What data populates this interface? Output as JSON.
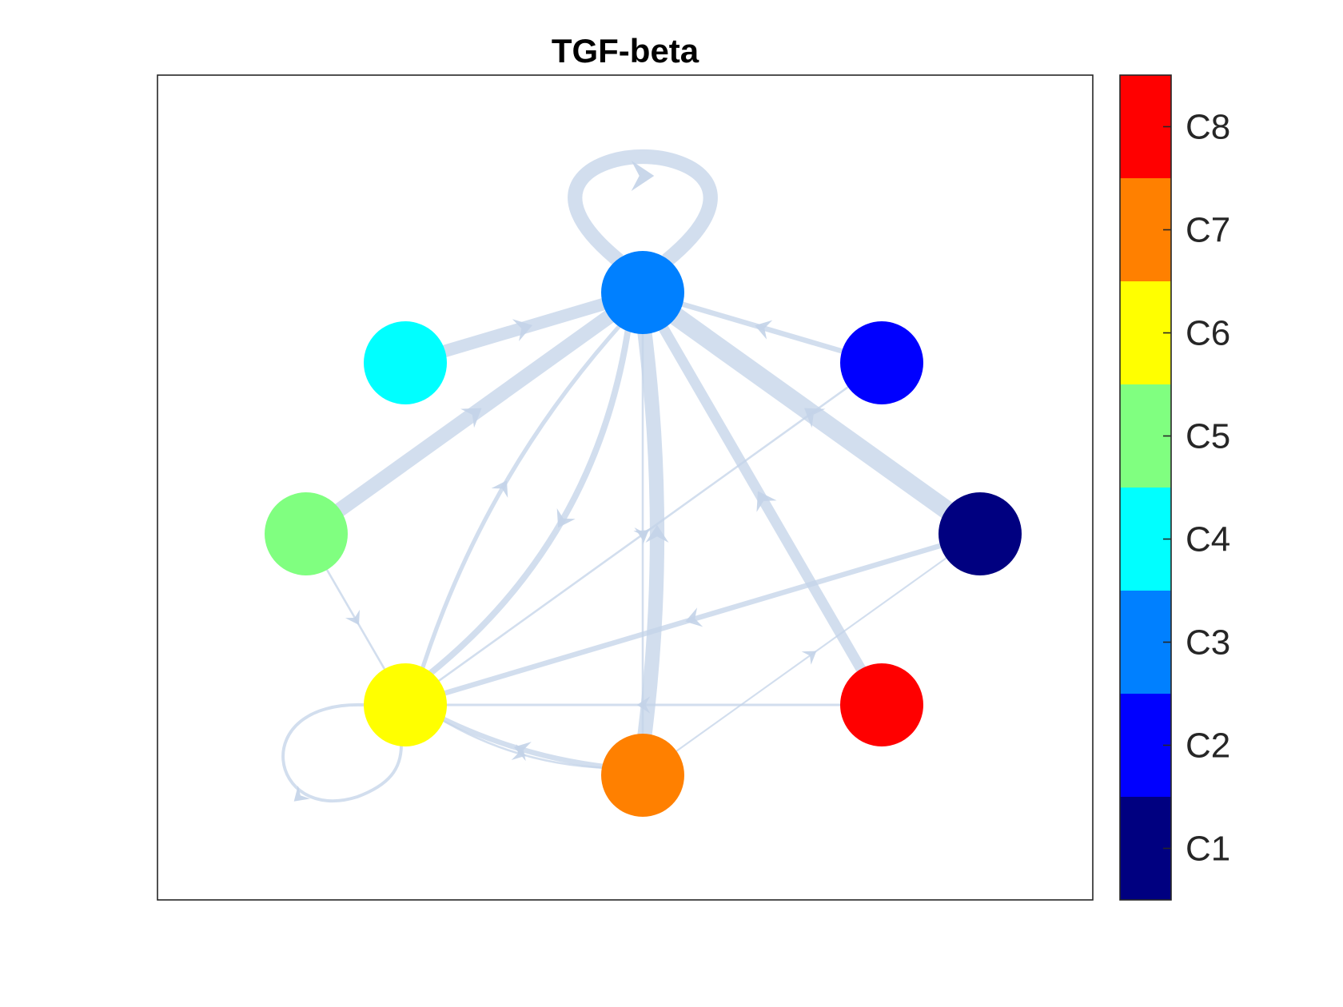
{
  "chart_data": {
    "type": "network",
    "title": "TGF-beta",
    "edge_color": "#c3d3e8",
    "nodes": [
      {
        "id": "C1",
        "color": "#000080"
      },
      {
        "id": "C2",
        "color": "#0000ff"
      },
      {
        "id": "C3",
        "color": "#0080ff"
      },
      {
        "id": "C4",
        "color": "#00ffff"
      },
      {
        "id": "C5",
        "color": "#80ff80"
      },
      {
        "id": "C6",
        "color": "#ffff00"
      },
      {
        "id": "C7",
        "color": "#ff8000"
      },
      {
        "id": "C8",
        "color": "#ff0000"
      }
    ],
    "edges": [
      {
        "source": "C3",
        "target": "C3",
        "weight": 7
      },
      {
        "source": "C4",
        "target": "C3",
        "weight": 6
      },
      {
        "source": "C5",
        "target": "C3",
        "weight": 7
      },
      {
        "source": "C1",
        "target": "C3",
        "weight": 9
      },
      {
        "source": "C2",
        "target": "C3",
        "weight": 2.5
      },
      {
        "source": "C7",
        "target": "C3",
        "weight": 7
      },
      {
        "source": "C8",
        "target": "C3",
        "weight": 5
      },
      {
        "source": "C3",
        "target": "C6",
        "weight": 3
      },
      {
        "source": "C6",
        "target": "C3",
        "weight": 2
      },
      {
        "source": "C3",
        "target": "C7",
        "weight": 1
      },
      {
        "source": "C6",
        "target": "C2",
        "weight": 1
      },
      {
        "source": "C1",
        "target": "C6",
        "weight": 2.5
      },
      {
        "source": "C8",
        "target": "C6",
        "weight": 1.2
      },
      {
        "source": "C7",
        "target": "C6",
        "weight": 2.5
      },
      {
        "source": "C6",
        "target": "C7",
        "weight": 1
      },
      {
        "source": "C5",
        "target": "C6",
        "weight": 1
      },
      {
        "source": "C6",
        "target": "C6",
        "weight": 1.5
      },
      {
        "source": "C7",
        "target": "C1",
        "weight": 0.8
      }
    ],
    "colorbar": {
      "labels": [
        "C1",
        "C2",
        "C3",
        "C4",
        "C5",
        "C6",
        "C7",
        "C8"
      ],
      "colors": [
        "#000080",
        "#0000ff",
        "#0080ff",
        "#00ffff",
        "#80ff80",
        "#ffff00",
        "#ff8000",
        "#ff0000"
      ]
    }
  }
}
